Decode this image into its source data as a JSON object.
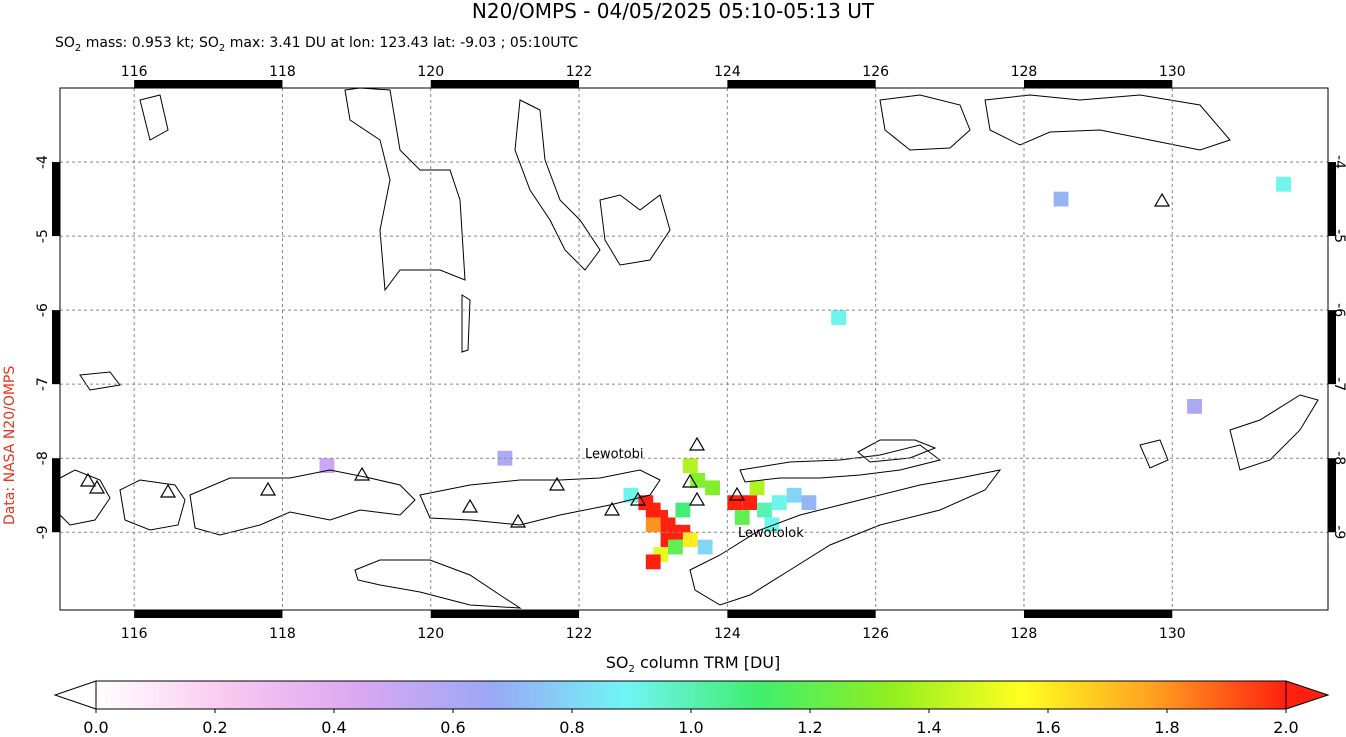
{
  "map_data": {
    "type": "satellite-map",
    "title": "N20/OMPS - 04/05/2025 05:10-05:13 UT",
    "subtitle_parts": [
      "SO",
      "2",
      " mass: 0.953 kt; SO",
      "2",
      " max: 3.41 DU at lon: 123.43 lat: -9.03 ; 05:10UTC"
    ],
    "colorbar_label_parts": [
      "SO",
      "2",
      " column TRM [DU]"
    ],
    "source": "Data: NASA N20/OMPS",
    "xlim": [
      115,
      132.1
    ],
    "ylim": [
      -10.05,
      -3
    ],
    "xticks": [
      116,
      118,
      120,
      122,
      124,
      126,
      128,
      130
    ],
    "yticks": [
      -4,
      -5,
      -6,
      -7,
      -8,
      -9
    ],
    "grid": true,
    "volcano_labels": [
      "Lewotobi",
      "Lewotolok"
    ],
    "colorbar_lim": [
      0,
      2
    ],
    "colorbar_ticks": [
      {
        "value": 0,
        "label": "0.0"
      },
      {
        "value": 0.2,
        "label": "0.2"
      },
      {
        "value": 0.4,
        "label": "0.4"
      },
      {
        "value": 0.6,
        "label": "0.6"
      },
      {
        "value": 0.8,
        "label": "0.8"
      },
      {
        "value": 1,
        "label": "1.0"
      },
      {
        "value": 1.2,
        "label": "1.2"
      },
      {
        "value": 1.4,
        "label": "1.4"
      },
      {
        "value": 1.6,
        "label": "1.6"
      },
      {
        "value": 1.8,
        "label": "1.8"
      },
      {
        "value": 2,
        "label": "2.0"
      }
    ],
    "colormap": [
      "#ffffff",
      "#f9c8f0",
      "#d9a8f0",
      "#9aa8f5",
      "#70f5f5",
      "#40ee70",
      "#90ee20",
      "#ffff20",
      "#ffa020",
      "#ff2010"
    ],
    "pixel_size": 0.2,
    "pixels": [
      [
        122.9,
        -8.6,
        2.0
      ],
      [
        123.0,
        -8.7,
        2.5
      ],
      [
        123.1,
        -8.8,
        3.0
      ],
      [
        123.2,
        -8.9,
        3.2
      ],
      [
        123.4,
        -9.0,
        3.41
      ],
      [
        123.3,
        -9.0,
        2.8
      ],
      [
        123.0,
        -8.9,
        1.8
      ],
      [
        123.2,
        -9.1,
        2.2
      ],
      [
        123.5,
        -9.1,
        1.6
      ],
      [
        123.3,
        -9.2,
        1.2
      ],
      [
        123.1,
        -9.3,
        1.5
      ],
      [
        123.0,
        -9.4,
        2.1
      ],
      [
        123.4,
        -8.7,
        1.1
      ],
      [
        123.6,
        -8.3,
        1.3
      ],
      [
        123.5,
        -8.1,
        1.4
      ],
      [
        124.1,
        -8.6,
        2.3
      ],
      [
        124.3,
        -8.6,
        2.0
      ],
      [
        124.2,
        -8.8,
        1.2
      ],
      [
        124.5,
        -8.7,
        1.0
      ],
      [
        124.4,
        -8.4,
        1.4
      ],
      [
        124.7,
        -8.6,
        0.9
      ],
      [
        124.9,
        -8.5,
        0.8
      ],
      [
        125.1,
        -8.6,
        0.7
      ],
      [
        123.8,
        -8.4,
        1.3
      ],
      [
        122.7,
        -8.5,
        0.9
      ],
      [
        123.7,
        -9.2,
        0.8
      ],
      [
        124.6,
        -8.9,
        0.9
      ],
      [
        121.0,
        -8.0,
        0.6
      ],
      [
        118.6,
        -8.1,
        0.5
      ],
      [
        130.3,
        -7.3,
        0.6
      ],
      [
        125.5,
        -6.1,
        0.9
      ],
      [
        128.5,
        -4.5,
        0.7
      ],
      [
        131.5,
        -4.3,
        0.9
      ]
    ]
  }
}
